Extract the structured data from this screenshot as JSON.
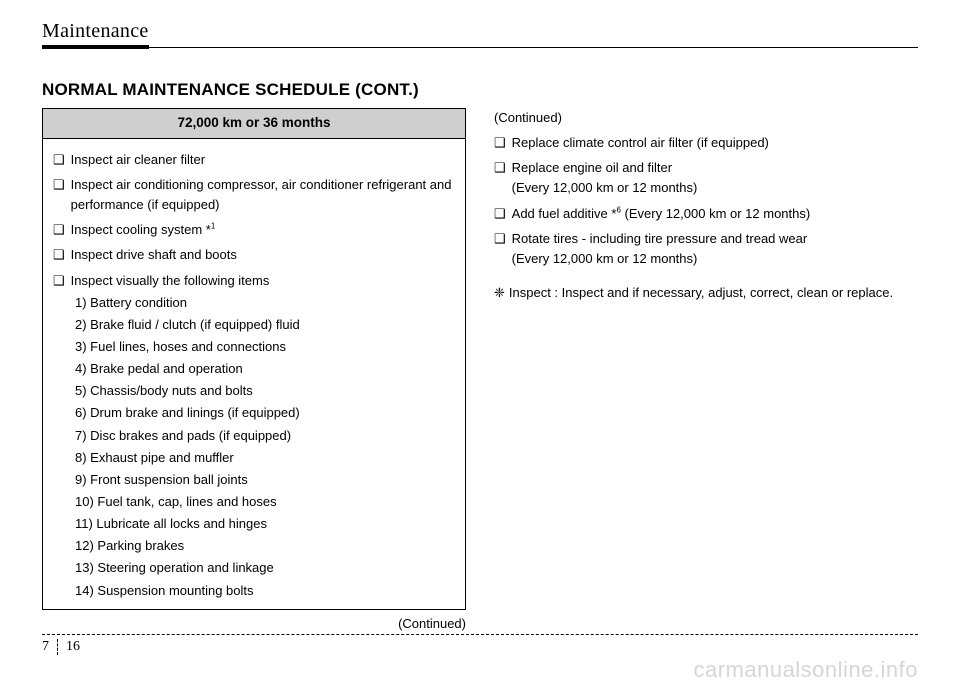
{
  "header": {
    "title": "Maintenance"
  },
  "section_title": "NORMAL MAINTENANCE SCHEDULE (CONT.)",
  "left": {
    "box_header": "72,000 km or 36 months",
    "items": [
      {
        "text": "Inspect air cleaner filter"
      },
      {
        "text": "Inspect air conditioning compressor, air conditioner refrigerant and performance (if equipped)"
      },
      {
        "text": "Inspect cooling system *",
        "sup": "1"
      },
      {
        "text": "Inspect drive shaft and boots"
      },
      {
        "text": "Inspect visually the following items"
      }
    ],
    "numbered": [
      "1) Battery condition",
      "2) Brake fluid / clutch (if equipped) fluid",
      "3) Fuel lines, hoses and connections",
      "4) Brake pedal and operation",
      "5) Chassis/body nuts and bolts",
      "6) Drum brake and linings (if equipped)",
      "7) Disc brakes and pads (if equipped)",
      "8) Exhaust pipe and muffler",
      "9) Front suspension ball joints",
      "10) Fuel tank, cap, lines and hoses",
      "11) Lubricate all locks and hinges",
      "12) Parking brakes",
      "13) Steering operation and linkage",
      "14) Suspension mounting bolts"
    ],
    "continued": "(Continued)"
  },
  "right": {
    "continued": "(Continued)",
    "items": [
      {
        "text": "Replace climate control air filter (if equipped)"
      },
      {
        "text": "Replace engine oil and filter",
        "sub": "(Every 12,000 km or 12 months)"
      },
      {
        "text": "Add fuel additive *",
        "sup": "6",
        "tail": " (Every 12,000 km or 12 months)"
      },
      {
        "text": "Rotate tires - including tire pressure and tread wear",
        "sub": "(Every 12,000 km or 12 months)"
      }
    ],
    "note": "Inspect : Inspect and if necessary, adjust, correct, clean or replace."
  },
  "bullets": {
    "square": "❑",
    "diamond": "❈"
  },
  "footer": {
    "chapter": "7",
    "page": "16"
  },
  "watermark": "carmanualsonline.info"
}
